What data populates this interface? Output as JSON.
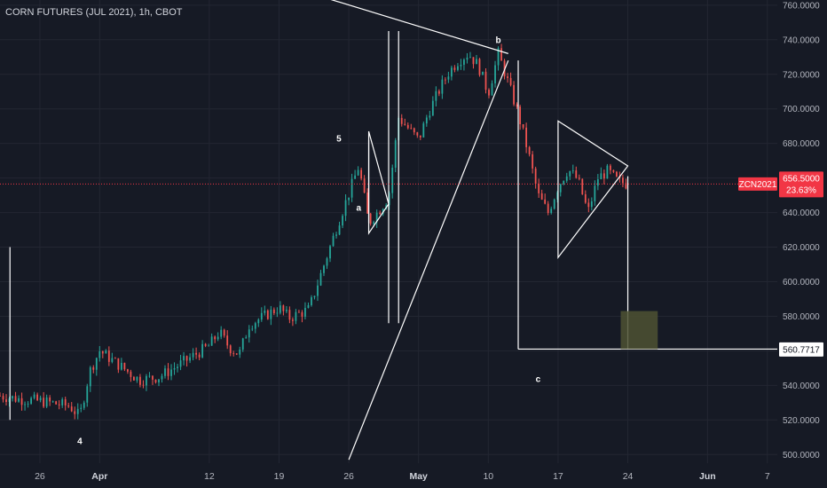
{
  "header": {
    "symbol_name": "CORN FUTURES (JUL 2021)",
    "interval": "1h",
    "exchange": "CBOT"
  },
  "colors": {
    "background": "#161a25",
    "up_candle": "#26a69a",
    "down_candle": "#ef5350",
    "drawing": "#ffffff",
    "last_price": "#f23645",
    "target_box": "#4d5233"
  },
  "price_label": {
    "symbol": "ZCN2021",
    "price": "656.5000",
    "change": "23.63%"
  },
  "target_label": "560.7717",
  "wave_labels": [
    "5",
    "a",
    "b",
    "c",
    "4"
  ],
  "chart_data": {
    "type": "candlestick",
    "title": "CORN FUTURES (JUL 2021), 1h, CBOT",
    "y_axis": {
      "ticks": [
        "500.0000",
        "520.0000",
        "540.0000",
        "560.0000",
        "580.0000",
        "600.0000",
        "620.0000",
        "640.0000",
        "660.0000",
        "680.0000",
        "700.0000",
        "720.0000",
        "740.0000",
        "760.0000"
      ],
      "range": [
        495,
        763
      ]
    },
    "x_axis": {
      "ticks": [
        {
          "label": "26",
          "date": "2021-03-26"
        },
        {
          "label": "Apr",
          "date": "2021-04-01"
        },
        {
          "label": "12",
          "date": "2021-04-12"
        },
        {
          "label": "19",
          "date": "2021-04-19"
        },
        {
          "label": "26",
          "date": "2021-04-26"
        },
        {
          "label": "May",
          "date": "2021-05-03"
        },
        {
          "label": "10",
          "date": "2021-05-10"
        },
        {
          "label": "17",
          "date": "2021-05-17"
        },
        {
          "label": "24",
          "date": "2021-05-24"
        },
        {
          "label": "Jun",
          "date": "2021-06-01"
        },
        {
          "label": "7",
          "date": "2021-06-07"
        }
      ],
      "range": [
        "2021-03-22",
        "2021-06-08"
      ]
    },
    "series": [
      {
        "anchor_closes": [
          [
            "2021-03-22",
            534
          ],
          [
            "2021-03-24",
            532
          ],
          [
            "2021-03-26",
            531
          ],
          [
            "2021-03-29",
            528
          ],
          [
            "2021-03-30",
            522
          ],
          [
            "2021-03-31",
            548
          ],
          [
            "2021-04-01",
            560
          ],
          [
            "2021-04-05",
            543
          ],
          [
            "2021-04-07",
            545
          ],
          [
            "2021-04-09",
            552
          ],
          [
            "2021-04-12",
            563
          ],
          [
            "2021-04-13",
            571
          ],
          [
            "2021-04-14",
            562
          ],
          [
            "2021-04-15",
            558
          ],
          [
            "2021-04-16",
            575
          ],
          [
            "2021-04-19",
            585
          ],
          [
            "2021-04-20",
            579
          ],
          [
            "2021-04-22",
            584
          ],
          [
            "2021-04-23",
            601
          ],
          [
            "2021-04-25",
            635
          ],
          [
            "2021-04-26",
            651
          ],
          [
            "2021-04-27",
            667
          ],
          [
            "2021-04-28",
            634
          ],
          [
            "2021-04-29",
            641
          ],
          [
            "2021-04-30",
            649
          ],
          [
            "2021-05-01",
            695
          ],
          [
            "2021-05-03",
            682
          ],
          [
            "2021-05-04",
            698
          ],
          [
            "2021-05-05",
            710
          ],
          [
            "2021-05-06",
            721
          ],
          [
            "2021-05-07",
            728
          ],
          [
            "2021-05-08",
            732
          ],
          [
            "2021-05-09",
            725
          ],
          [
            "2021-05-10",
            709
          ],
          [
            "2021-05-11",
            732
          ],
          [
            "2021-05-12",
            715
          ],
          [
            "2021-05-13",
            697
          ],
          [
            "2021-05-14",
            675
          ],
          [
            "2021-05-15",
            650
          ],
          [
            "2021-05-16",
            640
          ],
          [
            "2021-05-17",
            655
          ],
          [
            "2021-05-18",
            665
          ],
          [
            "2021-05-19",
            659
          ],
          [
            "2021-05-20",
            640
          ],
          [
            "2021-05-21",
            660
          ],
          [
            "2021-05-22",
            664
          ],
          [
            "2021-05-23",
            658
          ],
          [
            "2021-05-24",
            656.5
          ]
        ]
      }
    ],
    "last_price": 656.5,
    "target_price": 560.7717,
    "annotations": {
      "wave_labels": [
        {
          "text": "5",
          "date": "2021-04-25",
          "price": 681
        },
        {
          "text": "a",
          "date": "2021-04-27",
          "price": 641
        },
        {
          "text": "b",
          "date": "2021-05-11",
          "price": 738
        },
        {
          "text": "c",
          "date": "2021-05-15",
          "price": 542
        },
        {
          "text": "4",
          "date": "2021-03-30",
          "price": 506
        }
      ],
      "lines": [
        {
          "from": [
            "2021-04-09",
            790
          ],
          "to": [
            "2021-05-12",
            732
          ]
        },
        {
          "from": [
            "2021-03-23",
            620
          ],
          "to": [
            "2021-03-23",
            520
          ]
        },
        {
          "from": [
            "2021-04-30",
            745
          ],
          "to": [
            "2021-04-30",
            576
          ]
        },
        {
          "from": [
            "2021-04-28",
            682
          ],
          "to": [
            "2021-04-28",
            634
          ]
        },
        {
          "from": [
            "2021-05-01",
            745
          ],
          "to": [
            "2021-05-01",
            576
          ]
        },
        {
          "from": [
            "2021-04-26",
            497
          ],
          "to": [
            "2021-05-12",
            728
          ]
        },
        {
          "from": [
            "2021-05-13",
            728
          ],
          "to": [
            "2021-05-13",
            561
          ]
        },
        {
          "from": [
            "2021-05-13",
            561
          ],
          "to": [
            "2021-06-08",
            561
          ]
        },
        {
          "from": [
            "2021-05-24",
            661
          ],
          "to": [
            "2021-05-24",
            561
          ]
        }
      ],
      "triangles": [
        {
          "points": [
            [
              "2021-04-28",
              687
            ],
            [
              "2021-04-30",
              645
            ],
            [
              "2021-04-28",
              628
            ]
          ]
        },
        {
          "points": [
            [
              "2021-05-17",
              693
            ],
            [
              "2021-05-24",
              667
            ],
            [
              "2021-05-17",
              614
            ]
          ]
        }
      ],
      "target_box": {
        "from": [
          "2021-05-24",
          583
        ],
        "to": [
          "2021-05-27",
          561
        ]
      }
    }
  }
}
